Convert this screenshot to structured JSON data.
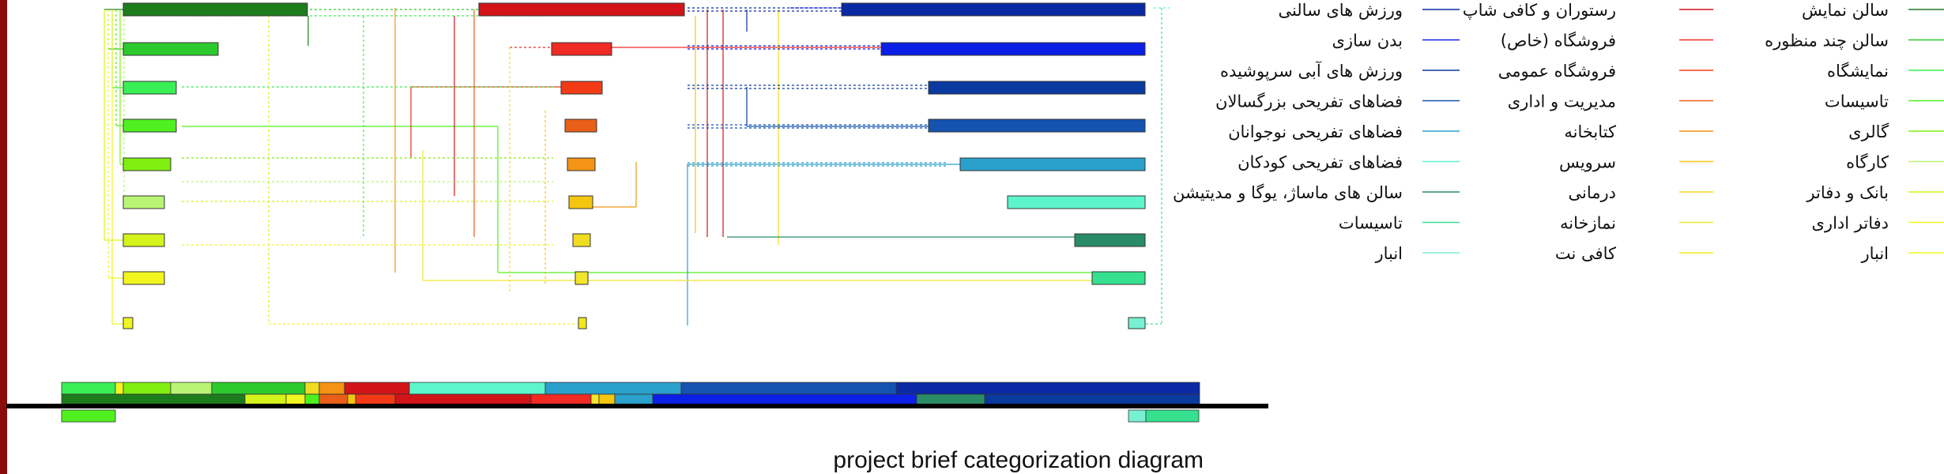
{
  "caption": "project brief categorization diagram",
  "colors": {
    "frame": "#8b0a0a",
    "baseline": "#000000",
    "greens": [
      "#1d7d1d",
      "#2dca2d",
      "#39ef55",
      "#4ff020",
      "#80ef10",
      "#b8f575",
      "#d4f31a",
      "#f2f51f",
      "#eef520"
    ],
    "reds": [
      "#d21418",
      "#ef2b24",
      "#f23b16",
      "#ea5f18",
      "#f39414",
      "#f5c60f",
      "#f0dc20",
      "#f2e62e",
      "#efe91e"
    ],
    "blues": [
      "#0a2aa5",
      "#0b1fe6",
      "#0a3aa0",
      "#1553b0",
      "#2aa0cc",
      "#5cf5cc",
      "#2a8c66",
      "#35e08e",
      "#78f0d2"
    ]
  },
  "legend": {
    "groups": [
      {
        "items": [
          "سالن نمایش",
          "سالن چند منظوره",
          "نمایشگاه",
          "تاسیسات",
          "گالری",
          "کارگاه",
          "بانک و دفاتر",
          "دفاتر اداری",
          "انبار"
        ]
      },
      {
        "items": [
          "رستوران و کافی شاپ",
          "فروشگاه (خاص)",
          "فروشگاه عمومی",
          "مدیریت و اداری",
          "کتابخانه",
          "سرویس",
          "درمانی",
          "نمازخانه",
          "کافی نت"
        ]
      },
      {
        "items": [
          "ورزش های سالنی",
          "بدن سازی",
          "ورزش های آبی سرپوشیده",
          "فضاهای تفریحی بزرگسالان",
          "فضاهای تفریحی نوجوانان",
          "فضاهای تفریحی کودکان",
          "سالن های ماساژ، یوگا و مدیتیشن",
          "تاسیسات",
          "انبار"
        ]
      }
    ]
  }
}
